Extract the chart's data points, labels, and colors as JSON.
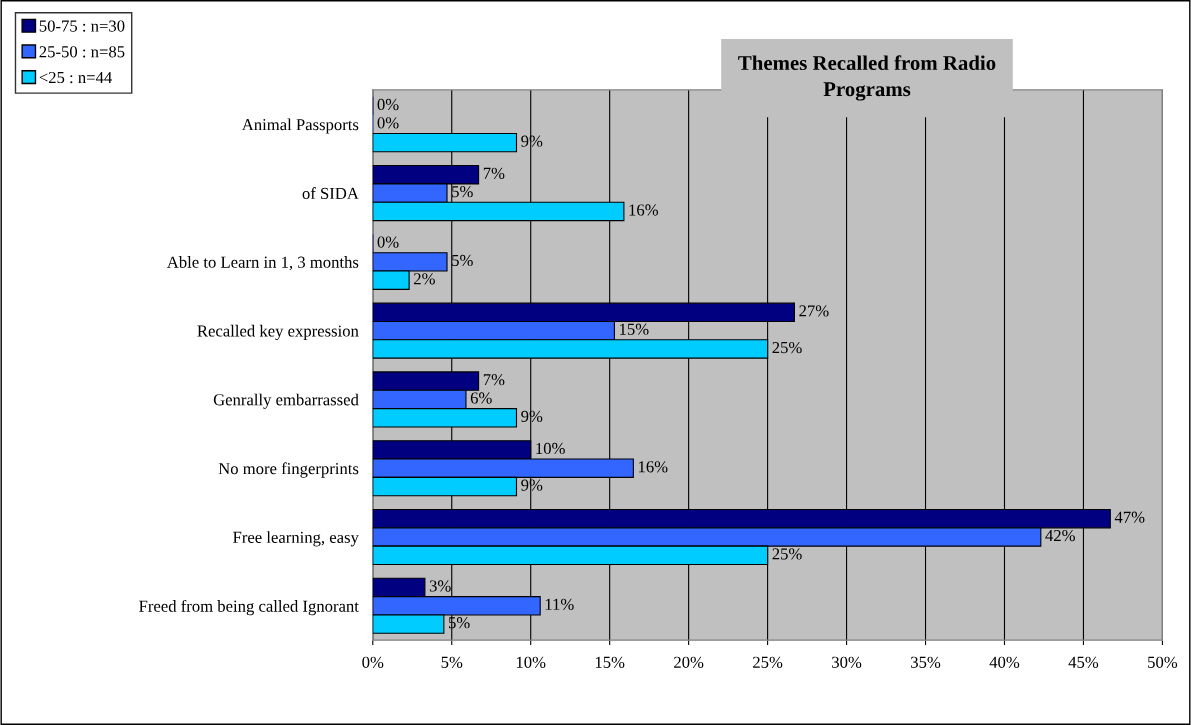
{
  "chart_data": {
    "type": "bar",
    "orientation": "horizontal",
    "title": "Themes Recalled from Radio Programs",
    "categories": [
      "Animal Passports",
      "of SIDA",
      "Able to Learn in 1, 3 months",
      "Recalled key expression",
      "Genrally embarrassed",
      "No more fingerprints",
      "Free learning, easy",
      "Freed from being called Ignorant"
    ],
    "series": [
      {
        "name": "50-75 : n=30",
        "color": "#000080",
        "values": [
          0,
          6.7,
          0,
          26.7,
          6.7,
          10,
          46.7,
          3.3
        ],
        "value_labels": [
          "0%",
          "7%",
          "0%",
          "27%",
          "7%",
          "10%",
          "47%",
          "3%"
        ]
      },
      {
        "name": "25-50 : n=85",
        "color": "#3366ff",
        "values": [
          0,
          4.7,
          4.7,
          15.3,
          5.9,
          16.5,
          42.3,
          10.6
        ],
        "value_labels": [
          "0%",
          "5%",
          "5%",
          "15%",
          "6%",
          "16%",
          "42%",
          "11%"
        ]
      },
      {
        "name": "<25 : n=44",
        "color": "#00ccff",
        "values": [
          9.1,
          15.9,
          2.3,
          25,
          9.1,
          9.1,
          25,
          4.5
        ],
        "value_labels": [
          "9%",
          "16%",
          "2%",
          "25%",
          "9%",
          "9%",
          "25%",
          "5%"
        ]
      }
    ],
    "xlim": [
      0,
      50
    ],
    "xticks": [
      {
        "value": 0,
        "label": "0%"
      },
      {
        "value": 5,
        "label": "5%"
      },
      {
        "value": 10,
        "label": "10%"
      },
      {
        "value": 15,
        "label": "15%"
      },
      {
        "value": 20,
        "label": "20%"
      },
      {
        "value": 25,
        "label": "25%"
      },
      {
        "value": 30,
        "label": "30%"
      },
      {
        "value": 35,
        "label": "35%"
      },
      {
        "value": 40,
        "label": "40%"
      },
      {
        "value": 45,
        "label": "45%"
      },
      {
        "value": 50,
        "label": "50%"
      }
    ],
    "grid": "x",
    "legend": "top left"
  }
}
